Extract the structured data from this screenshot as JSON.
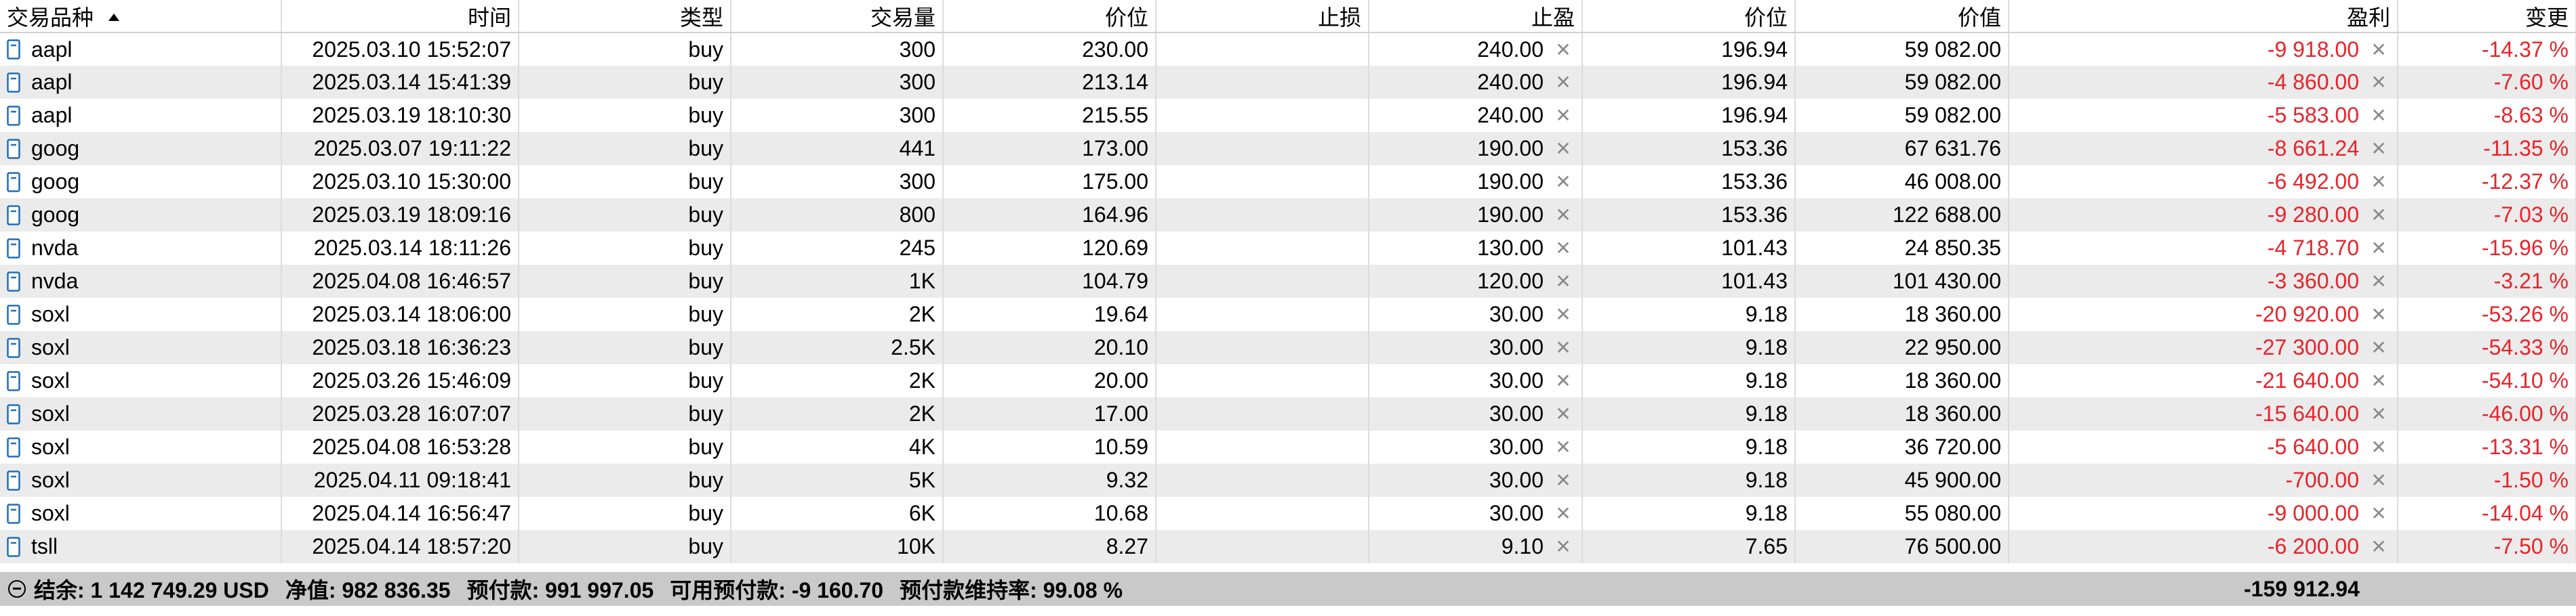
{
  "columns": [
    "交易品种",
    "时间",
    "类型",
    "交易量",
    "价位",
    "止损",
    "止盈",
    "价位",
    "价值",
    "盈利",
    "变更"
  ],
  "rows": [
    {
      "symbol": "aapl",
      "time": "2025.03.10 15:52:07",
      "type": "buy",
      "volume": "300",
      "price": "230.00",
      "sl": "",
      "tp": "240.00",
      "cur_price": "196.94",
      "value": "59 082.00",
      "profit": "-9 918.00",
      "change": "-14.37 %"
    },
    {
      "symbol": "aapl",
      "time": "2025.03.14 15:41:39",
      "type": "buy",
      "volume": "300",
      "price": "213.14",
      "sl": "",
      "tp": "240.00",
      "cur_price": "196.94",
      "value": "59 082.00",
      "profit": "-4 860.00",
      "change": "-7.60 %"
    },
    {
      "symbol": "aapl",
      "time": "2025.03.19 18:10:30",
      "type": "buy",
      "volume": "300",
      "price": "215.55",
      "sl": "",
      "tp": "240.00",
      "cur_price": "196.94",
      "value": "59 082.00",
      "profit": "-5 583.00",
      "change": "-8.63 %"
    },
    {
      "symbol": "goog",
      "time": "2025.03.07 19:11:22",
      "type": "buy",
      "volume": "441",
      "price": "173.00",
      "sl": "",
      "tp": "190.00",
      "cur_price": "153.36",
      "value": "67 631.76",
      "profit": "-8 661.24",
      "change": "-11.35 %"
    },
    {
      "symbol": "goog",
      "time": "2025.03.10 15:30:00",
      "type": "buy",
      "volume": "300",
      "price": "175.00",
      "sl": "",
      "tp": "190.00",
      "cur_price": "153.36",
      "value": "46 008.00",
      "profit": "-6 492.00",
      "change": "-12.37 %"
    },
    {
      "symbol": "goog",
      "time": "2025.03.19 18:09:16",
      "type": "buy",
      "volume": "800",
      "price": "164.96",
      "sl": "",
      "tp": "190.00",
      "cur_price": "153.36",
      "value": "122 688.00",
      "profit": "-9 280.00",
      "change": "-7.03 %"
    },
    {
      "symbol": "nvda",
      "time": "2025.03.14 18:11:26",
      "type": "buy",
      "volume": "245",
      "price": "120.69",
      "sl": "",
      "tp": "130.00",
      "cur_price": "101.43",
      "value": "24 850.35",
      "profit": "-4 718.70",
      "change": "-15.96 %"
    },
    {
      "symbol": "nvda",
      "time": "2025.04.08 16:46:57",
      "type": "buy",
      "volume": "1K",
      "price": "104.79",
      "sl": "",
      "tp": "120.00",
      "cur_price": "101.43",
      "value": "101 430.00",
      "profit": "-3 360.00",
      "change": "-3.21 %"
    },
    {
      "symbol": "soxl",
      "time": "2025.03.14 18:06:00",
      "type": "buy",
      "volume": "2K",
      "price": "19.64",
      "sl": "",
      "tp": "30.00",
      "cur_price": "9.18",
      "value": "18 360.00",
      "profit": "-20 920.00",
      "change": "-53.26 %"
    },
    {
      "symbol": "soxl",
      "time": "2025.03.18 16:36:23",
      "type": "buy",
      "volume": "2.5K",
      "price": "20.10",
      "sl": "",
      "tp": "30.00",
      "cur_price": "9.18",
      "value": "22 950.00",
      "profit": "-27 300.00",
      "change": "-54.33 %"
    },
    {
      "symbol": "soxl",
      "time": "2025.03.26 15:46:09",
      "type": "buy",
      "volume": "2K",
      "price": "20.00",
      "sl": "",
      "tp": "30.00",
      "cur_price": "9.18",
      "value": "18 360.00",
      "profit": "-21 640.00",
      "change": "-54.10 %"
    },
    {
      "symbol": "soxl",
      "time": "2025.03.28 16:07:07",
      "type": "buy",
      "volume": "2K",
      "price": "17.00",
      "sl": "",
      "tp": "30.00",
      "cur_price": "9.18",
      "value": "18 360.00",
      "profit": "-15 640.00",
      "change": "-46.00 %"
    },
    {
      "symbol": "soxl",
      "time": "2025.04.08 16:53:28",
      "type": "buy",
      "volume": "4K",
      "price": "10.59",
      "sl": "",
      "tp": "30.00",
      "cur_price": "9.18",
      "value": "36 720.00",
      "profit": "-5 640.00",
      "change": "-13.31 %"
    },
    {
      "symbol": "soxl",
      "time": "2025.04.11 09:18:41",
      "type": "buy",
      "volume": "5K",
      "price": "9.32",
      "sl": "",
      "tp": "30.00",
      "cur_price": "9.18",
      "value": "45 900.00",
      "profit": "-700.00",
      "change": "-1.50 %"
    },
    {
      "symbol": "soxl",
      "time": "2025.04.14 16:56:47",
      "type": "buy",
      "volume": "6K",
      "price": "10.68",
      "sl": "",
      "tp": "30.00",
      "cur_price": "9.18",
      "value": "55 080.00",
      "profit": "-9 000.00",
      "change": "-14.04 %"
    },
    {
      "symbol": "tsll",
      "time": "2025.04.14 18:57:20",
      "type": "buy",
      "volume": "10K",
      "price": "8.27",
      "sl": "",
      "tp": "9.10",
      "cur_price": "7.65",
      "value": "76 500.00",
      "profit": "-6 200.00",
      "change": "-7.50 %"
    }
  ],
  "summary": {
    "balance": "结余: 1 142 749.29 USD",
    "equity": "净值: 982 836.35",
    "margin": "预付款: 991 997.05",
    "free_margin": "可用预付款: -9 160.70",
    "margin_level": "预付款维持率: 99.08 %",
    "total_profit": "-159 912.94"
  },
  "icons": {
    "sort": "sort-ascending-icon",
    "row": "document-icon",
    "close": "close-icon",
    "collapse": "collapse-circle-icon"
  },
  "colors": {
    "negative": "#e8232a",
    "row_alt": "#ebebeb",
    "summary_bg": "#c9c9c9"
  }
}
